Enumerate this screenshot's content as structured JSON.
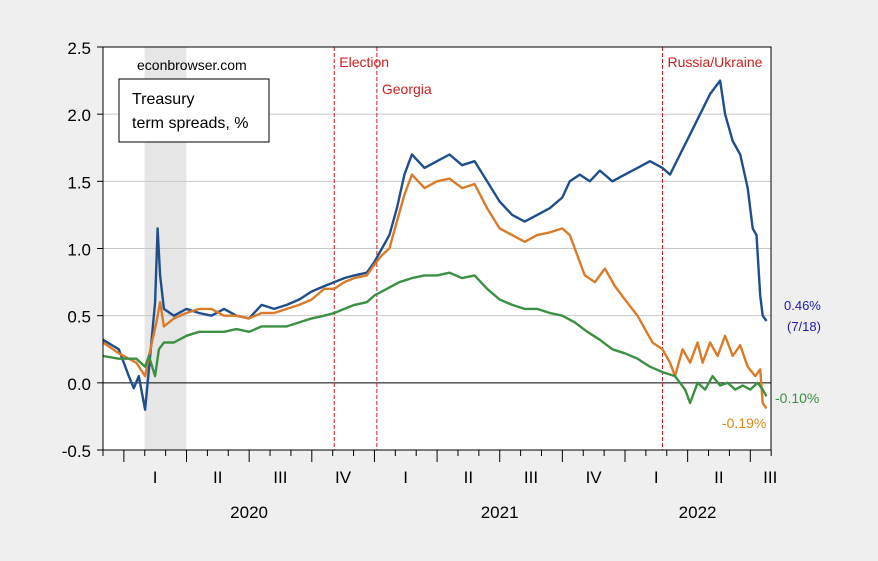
{
  "chart_data": {
    "type": "line",
    "title": "",
    "source_label": "econbrowser.com",
    "box_title_line1": "Treasury",
    "box_title_line2": "term spreads, %",
    "xlabel": "",
    "ylabel": "",
    "ylim": [
      -0.5,
      2.5
    ],
    "yticks": [
      "2.5",
      "2.0",
      "1.5",
      "1.0",
      "0.5",
      "0.0",
      "-0.5"
    ],
    "x_range": [
      2019.917,
      2022.583
    ],
    "quarter_labels": [
      {
        "label": "I",
        "x": 2020.125
      },
      {
        "label": "II",
        "x": 2020.375
      },
      {
        "label": "III",
        "x": 2020.625
      },
      {
        "label": "IV",
        "x": 2020.875
      },
      {
        "label": "I",
        "x": 2021.125
      },
      {
        "label": "II",
        "x": 2021.375
      },
      {
        "label": "III",
        "x": 2021.625
      },
      {
        "label": "IV",
        "x": 2021.875
      },
      {
        "label": "I",
        "x": 2022.125
      },
      {
        "label": "II",
        "x": 2022.375
      },
      {
        "label": "III",
        "x": 2022.58
      }
    ],
    "year_labels": [
      {
        "label": "2020",
        "x": 2020.5
      },
      {
        "label": "2021",
        "x": 2021.5
      },
      {
        "label": "2022",
        "x": 2022.29
      }
    ],
    "recession_shade": {
      "from": 2020.083,
      "to": 2020.25
    },
    "events": [
      {
        "label": "Election",
        "x": 2020.84
      },
      {
        "label": "Georgia",
        "x": 2021.01
      },
      {
        "label": "Russia/Ukraine",
        "x": 2022.15
      }
    ],
    "series": [
      {
        "name": "",
        "color": "#1f4e8c",
        "end_label": "0.46%",
        "end_note": "(7/18)",
        "points": [
          [
            2019.917,
            0.32
          ],
          [
            2019.98,
            0.25
          ],
          [
            2020.02,
            0.05
          ],
          [
            2020.04,
            -0.04
          ],
          [
            2020.06,
            0.05
          ],
          [
            2020.085,
            -0.2
          ],
          [
            2020.1,
            0.1
          ],
          [
            2020.125,
            0.6
          ],
          [
            2020.135,
            1.15
          ],
          [
            2020.145,
            0.8
          ],
          [
            2020.16,
            0.55
          ],
          [
            2020.2,
            0.5
          ],
          [
            2020.25,
            0.55
          ],
          [
            2020.3,
            0.52
          ],
          [
            2020.35,
            0.5
          ],
          [
            2020.4,
            0.55
          ],
          [
            2020.45,
            0.5
          ],
          [
            2020.5,
            0.48
          ],
          [
            2020.55,
            0.58
          ],
          [
            2020.6,
            0.55
          ],
          [
            2020.65,
            0.58
          ],
          [
            2020.7,
            0.62
          ],
          [
            2020.75,
            0.68
          ],
          [
            2020.8,
            0.72
          ],
          [
            2020.84,
            0.75
          ],
          [
            2020.88,
            0.78
          ],
          [
            2020.92,
            0.8
          ],
          [
            2020.97,
            0.82
          ],
          [
            2021.0,
            0.9
          ],
          [
            2021.03,
            1.0
          ],
          [
            2021.06,
            1.1
          ],
          [
            2021.09,
            1.3
          ],
          [
            2021.12,
            1.55
          ],
          [
            2021.15,
            1.7
          ],
          [
            2021.2,
            1.6
          ],
          [
            2021.25,
            1.65
          ],
          [
            2021.3,
            1.7
          ],
          [
            2021.35,
            1.62
          ],
          [
            2021.4,
            1.65
          ],
          [
            2021.45,
            1.5
          ],
          [
            2021.5,
            1.35
          ],
          [
            2021.55,
            1.25
          ],
          [
            2021.6,
            1.2
          ],
          [
            2021.65,
            1.25
          ],
          [
            2021.7,
            1.3
          ],
          [
            2021.75,
            1.38
          ],
          [
            2021.78,
            1.5
          ],
          [
            2021.82,
            1.55
          ],
          [
            2021.86,
            1.5
          ],
          [
            2021.9,
            1.58
          ],
          [
            2021.95,
            1.5
          ],
          [
            2022.0,
            1.55
          ],
          [
            2022.05,
            1.6
          ],
          [
            2022.1,
            1.65
          ],
          [
            2022.15,
            1.6
          ],
          [
            2022.18,
            1.55
          ],
          [
            2022.22,
            1.7
          ],
          [
            2022.26,
            1.85
          ],
          [
            2022.3,
            2.0
          ],
          [
            2022.34,
            2.15
          ],
          [
            2022.38,
            2.25
          ],
          [
            2022.4,
            2.0
          ],
          [
            2022.43,
            1.8
          ],
          [
            2022.46,
            1.7
          ],
          [
            2022.49,
            1.45
          ],
          [
            2022.51,
            1.15
          ],
          [
            2022.525,
            1.1
          ],
          [
            2022.54,
            0.65
          ],
          [
            2022.55,
            0.5
          ],
          [
            2022.565,
            0.46
          ]
        ]
      },
      {
        "name": "",
        "color": "#d97b29",
        "end_label": "-0.19%",
        "points": [
          [
            2019.917,
            0.3
          ],
          [
            2019.98,
            0.22
          ],
          [
            2020.05,
            0.15
          ],
          [
            2020.085,
            0.05
          ],
          [
            2020.1,
            0.2
          ],
          [
            2020.13,
            0.45
          ],
          [
            2020.145,
            0.6
          ],
          [
            2020.16,
            0.42
          ],
          [
            2020.2,
            0.48
          ],
          [
            2020.25,
            0.52
          ],
          [
            2020.3,
            0.55
          ],
          [
            2020.35,
            0.55
          ],
          [
            2020.4,
            0.5
          ],
          [
            2020.45,
            0.5
          ],
          [
            2020.5,
            0.48
          ],
          [
            2020.55,
            0.52
          ],
          [
            2020.6,
            0.52
          ],
          [
            2020.65,
            0.55
          ],
          [
            2020.7,
            0.58
          ],
          [
            2020.75,
            0.62
          ],
          [
            2020.8,
            0.7
          ],
          [
            2020.84,
            0.7
          ],
          [
            2020.88,
            0.75
          ],
          [
            2020.92,
            0.78
          ],
          [
            2020.97,
            0.8
          ],
          [
            2021.0,
            0.88
          ],
          [
            2021.03,
            0.95
          ],
          [
            2021.06,
            1.0
          ],
          [
            2021.09,
            1.2
          ],
          [
            2021.12,
            1.4
          ],
          [
            2021.15,
            1.55
          ],
          [
            2021.2,
            1.45
          ],
          [
            2021.25,
            1.5
          ],
          [
            2021.3,
            1.52
          ],
          [
            2021.35,
            1.45
          ],
          [
            2021.4,
            1.48
          ],
          [
            2021.45,
            1.3
          ],
          [
            2021.5,
            1.15
          ],
          [
            2021.55,
            1.1
          ],
          [
            2021.6,
            1.05
          ],
          [
            2021.65,
            1.1
          ],
          [
            2021.7,
            1.12
          ],
          [
            2021.75,
            1.15
          ],
          [
            2021.78,
            1.1
          ],
          [
            2021.8,
            1.0
          ],
          [
            2021.84,
            0.8
          ],
          [
            2021.88,
            0.75
          ],
          [
            2021.92,
            0.85
          ],
          [
            2021.96,
            0.72
          ],
          [
            2022.0,
            0.62
          ],
          [
            2022.05,
            0.5
          ],
          [
            2022.08,
            0.4
          ],
          [
            2022.11,
            0.3
          ],
          [
            2022.15,
            0.25
          ],
          [
            2022.18,
            0.15
          ],
          [
            2022.2,
            0.05
          ],
          [
            2022.23,
            0.25
          ],
          [
            2022.26,
            0.15
          ],
          [
            2022.29,
            0.3
          ],
          [
            2022.31,
            0.15
          ],
          [
            2022.34,
            0.3
          ],
          [
            2022.37,
            0.2
          ],
          [
            2022.4,
            0.35
          ],
          [
            2022.43,
            0.2
          ],
          [
            2022.46,
            0.28
          ],
          [
            2022.49,
            0.12
          ],
          [
            2022.52,
            0.05
          ],
          [
            2022.54,
            0.1
          ],
          [
            2022.55,
            -0.15
          ],
          [
            2022.565,
            -0.19
          ]
        ]
      },
      {
        "name": "",
        "color": "#3d8f44",
        "end_label": "-0.10%",
        "points": [
          [
            2019.917,
            0.2
          ],
          [
            2019.98,
            0.18
          ],
          [
            2020.05,
            0.18
          ],
          [
            2020.085,
            0.12
          ],
          [
            2020.1,
            0.2
          ],
          [
            2020.125,
            0.05
          ],
          [
            2020.14,
            0.25
          ],
          [
            2020.16,
            0.3
          ],
          [
            2020.2,
            0.3
          ],
          [
            2020.25,
            0.35
          ],
          [
            2020.3,
            0.38
          ],
          [
            2020.35,
            0.38
          ],
          [
            2020.4,
            0.38
          ],
          [
            2020.45,
            0.4
          ],
          [
            2020.5,
            0.38
          ],
          [
            2020.55,
            0.42
          ],
          [
            2020.6,
            0.42
          ],
          [
            2020.65,
            0.42
          ],
          [
            2020.7,
            0.45
          ],
          [
            2020.75,
            0.48
          ],
          [
            2020.8,
            0.5
          ],
          [
            2020.84,
            0.52
          ],
          [
            2020.88,
            0.55
          ],
          [
            2020.92,
            0.58
          ],
          [
            2020.97,
            0.6
          ],
          [
            2021.0,
            0.65
          ],
          [
            2021.05,
            0.7
          ],
          [
            2021.1,
            0.75
          ],
          [
            2021.15,
            0.78
          ],
          [
            2021.2,
            0.8
          ],
          [
            2021.25,
            0.8
          ],
          [
            2021.3,
            0.82
          ],
          [
            2021.35,
            0.78
          ],
          [
            2021.4,
            0.8
          ],
          [
            2021.45,
            0.7
          ],
          [
            2021.5,
            0.62
          ],
          [
            2021.55,
            0.58
          ],
          [
            2021.6,
            0.55
          ],
          [
            2021.65,
            0.55
          ],
          [
            2021.7,
            0.52
          ],
          [
            2021.75,
            0.5
          ],
          [
            2021.8,
            0.45
          ],
          [
            2021.85,
            0.38
          ],
          [
            2021.9,
            0.32
          ],
          [
            2021.95,
            0.25
          ],
          [
            2022.0,
            0.22
          ],
          [
            2022.05,
            0.18
          ],
          [
            2022.1,
            0.12
          ],
          [
            2022.15,
            0.08
          ],
          [
            2022.2,
            0.05
          ],
          [
            2022.24,
            -0.05
          ],
          [
            2022.26,
            -0.15
          ],
          [
            2022.29,
            0.0
          ],
          [
            2022.32,
            -0.05
          ],
          [
            2022.35,
            0.05
          ],
          [
            2022.38,
            -0.02
          ],
          [
            2022.41,
            0.0
          ],
          [
            2022.44,
            -0.05
          ],
          [
            2022.47,
            -0.02
          ],
          [
            2022.5,
            -0.05
          ],
          [
            2022.53,
            0.0
          ],
          [
            2022.55,
            -0.05
          ],
          [
            2022.565,
            -0.1
          ]
        ]
      }
    ]
  },
  "colors": {
    "background": "#efefef",
    "plot_bg": "#ffffff",
    "grid": "#c8c8c8",
    "shade": "#e6e6e6",
    "event_line": "#cc1f1f",
    "blue_label": "#1c1cb0",
    "orange_label": "#d4881c",
    "green_label": "#3d8f44"
  }
}
